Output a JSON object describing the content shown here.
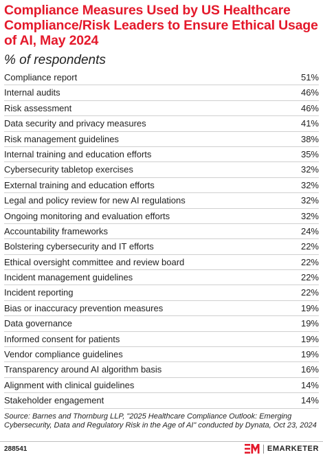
{
  "title": "Compliance Measures Used by US Healthcare Compliance/Risk Leaders to Ensure Ethical Usage of AI, May 2024",
  "subtitle": "% of respondents",
  "chart_data": {
    "type": "table",
    "title": "Compliance Measures Used by US Healthcare Compliance/Risk Leaders to Ensure Ethical Usage of AI, May 2024",
    "subtitle": "% of respondents",
    "unit": "%",
    "rows": [
      {
        "label": "Compliance report",
        "value": 51,
        "display": "51%"
      },
      {
        "label": "Internal audits",
        "value": 46,
        "display": "46%"
      },
      {
        "label": "Risk assessment",
        "value": 46,
        "display": "46%"
      },
      {
        "label": "Data security and privacy measures",
        "value": 41,
        "display": "41%"
      },
      {
        "label": "Risk management guidelines",
        "value": 38,
        "display": "38%"
      },
      {
        "label": "Internal training and education efforts",
        "value": 35,
        "display": "35%"
      },
      {
        "label": "Cybersecurity tabletop exercises",
        "value": 32,
        "display": "32%"
      },
      {
        "label": "External training and education efforts",
        "value": 32,
        "display": "32%"
      },
      {
        "label": "Legal and policy review for new AI regulations",
        "value": 32,
        "display": "32%"
      },
      {
        "label": "Ongoing monitoring and evaluation efforts",
        "value": 32,
        "display": "32%"
      },
      {
        "label": "Accountability frameworks",
        "value": 24,
        "display": "24%"
      },
      {
        "label": "Bolstering cybersecurity and IT efforts",
        "value": 22,
        "display": "22%"
      },
      {
        "label": "Ethical oversight committee and review board",
        "value": 22,
        "display": "22%"
      },
      {
        "label": "Incident management guidelines",
        "value": 22,
        "display": "22%"
      },
      {
        "label": "Incident reporting",
        "value": 22,
        "display": "22%"
      },
      {
        "label": "Bias or inaccuracy prevention measures",
        "value": 19,
        "display": "19%"
      },
      {
        "label": "Data governance",
        "value": 19,
        "display": "19%"
      },
      {
        "label": "Informed consent for patients",
        "value": 19,
        "display": "19%"
      },
      {
        "label": "Vendor compliance guidelines",
        "value": 19,
        "display": "19%"
      },
      {
        "label": "Transparency around AI algorithm basis",
        "value": 16,
        "display": "16%"
      },
      {
        "label": "Alignment with clinical guidelines",
        "value": 14,
        "display": "14%"
      },
      {
        "label": "Stakeholder engagement",
        "value": 14,
        "display": "14%"
      }
    ]
  },
  "source": "Source: Barnes and Thornburg LLP, \"2025 Healthcare Compliance Outlook: Emerging Cybersecurity, Data and Regulatory Risk in the Age of AI\" conducted by Dynata, Oct 23, 2024",
  "chart_id": "288541",
  "brand": {
    "name": "EMARKETER",
    "logo_icon": "em-logo-icon",
    "accent_color": "#e4192b"
  }
}
